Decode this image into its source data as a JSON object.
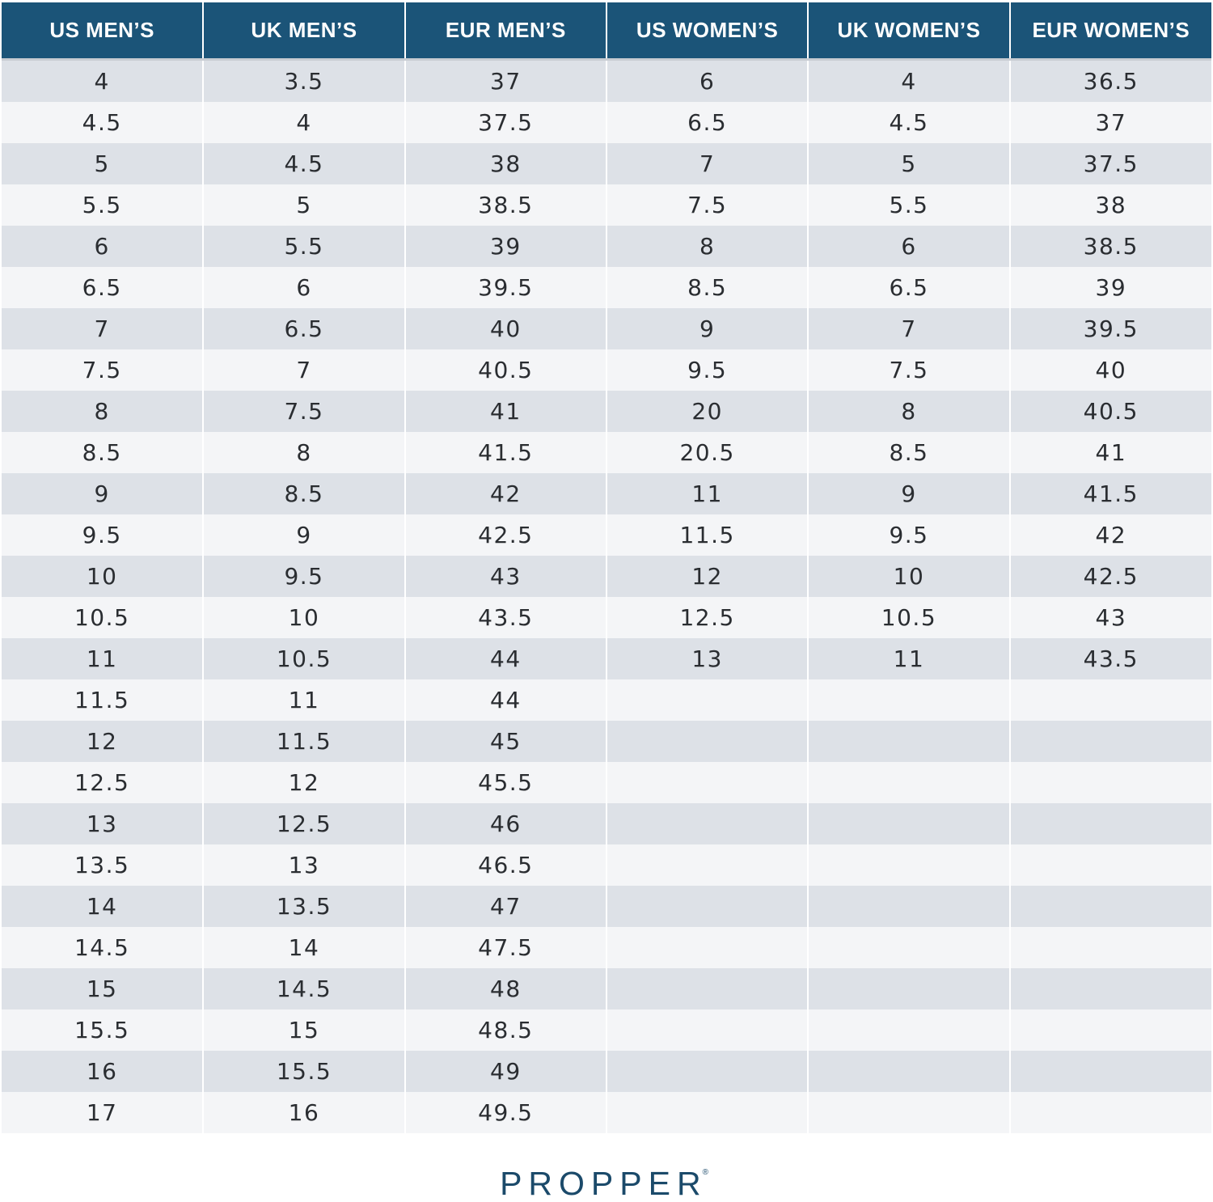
{
  "table": {
    "headers": [
      "US MEN’S",
      "UK MEN’S",
      "EUR MEN’S",
      "US WOMEN’S",
      "UK WOMEN’S",
      "EUR WOMEN’S"
    ],
    "rows": [
      [
        "4",
        "3.5",
        "37",
        "6",
        "4",
        "36.5"
      ],
      [
        "4.5",
        "4",
        "37.5",
        "6.5",
        "4.5",
        "37"
      ],
      [
        "5",
        "4.5",
        "38",
        "7",
        "5",
        "37.5"
      ],
      [
        "5.5",
        "5",
        "38.5",
        "7.5",
        "5.5",
        "38"
      ],
      [
        "6",
        "5.5",
        "39",
        "8",
        "6",
        "38.5"
      ],
      [
        "6.5",
        "6",
        "39.5",
        "8.5",
        "6.5",
        "39"
      ],
      [
        "7",
        "6.5",
        "40",
        "9",
        "7",
        "39.5"
      ],
      [
        "7.5",
        "7",
        "40.5",
        "9.5",
        "7.5",
        "40"
      ],
      [
        "8",
        "7.5",
        "41",
        "20",
        "8",
        "40.5"
      ],
      [
        "8.5",
        "8",
        "41.5",
        "20.5",
        "8.5",
        "41"
      ],
      [
        "9",
        "8.5",
        "42",
        "11",
        "9",
        "41.5"
      ],
      [
        "9.5",
        "9",
        "42.5",
        "11.5",
        "9.5",
        "42"
      ],
      [
        "10",
        "9.5",
        "43",
        "12",
        "10",
        "42.5"
      ],
      [
        "10.5",
        "10",
        "43.5",
        "12.5",
        "10.5",
        "43"
      ],
      [
        "11",
        "10.5",
        "44",
        "13",
        "11",
        "43.5"
      ],
      [
        "11.5",
        "11",
        "44",
        "",
        "",
        ""
      ],
      [
        "12",
        "11.5",
        "45",
        "",
        "",
        ""
      ],
      [
        "12.5",
        "12",
        "45.5",
        "",
        "",
        ""
      ],
      [
        "13",
        "12.5",
        "46",
        "",
        "",
        ""
      ],
      [
        "13.5",
        "13",
        "46.5",
        "",
        "",
        ""
      ],
      [
        "14",
        "13.5",
        "47",
        "",
        "",
        ""
      ],
      [
        "14.5",
        "14",
        "47.5",
        "",
        "",
        ""
      ],
      [
        "15",
        "14.5",
        "48",
        "",
        "",
        ""
      ],
      [
        "15.5",
        "15",
        "48.5",
        "",
        "",
        ""
      ],
      [
        "16",
        "15.5",
        "49",
        "",
        "",
        ""
      ],
      [
        "17",
        "16",
        "49.5",
        "",
        "",
        ""
      ]
    ]
  },
  "brand": {
    "name": "PROPPER",
    "mark": "®"
  },
  "colors": {
    "header_bg": "#1b5478",
    "header_text": "#ffffff",
    "row_shaded": "#dde1e7",
    "row_light": "#f4f5f7",
    "cell_text": "#2a2d31",
    "brand": "#1b4a6a"
  }
}
